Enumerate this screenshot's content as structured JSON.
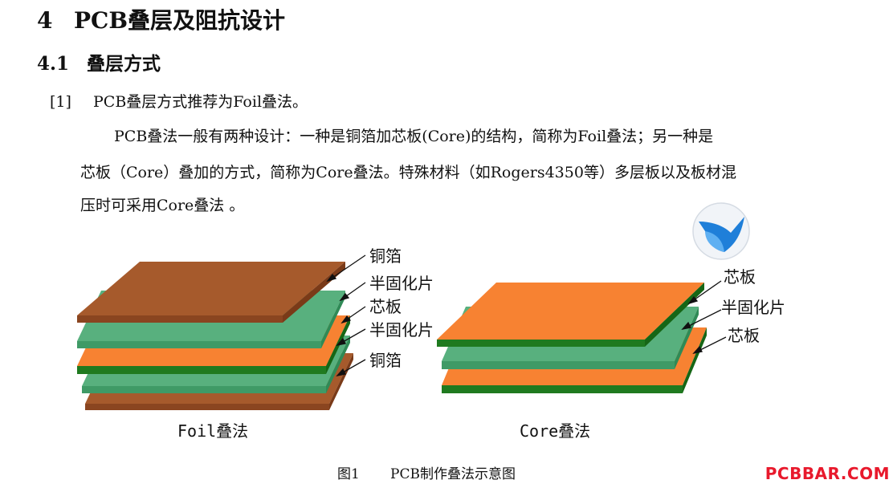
{
  "heading": {
    "number": "4",
    "title": "PCB叠层及阻抗设计"
  },
  "subheading": {
    "number": "4.1",
    "title": "叠层方式"
  },
  "item": {
    "number": "[1]",
    "text": "PCB叠层方式推荐为Foil叠法。"
  },
  "paragraph": {
    "line1": "PCB叠法一般有两种设计：一种是铜箔加芯板(Core)的结构，简称为Foil叠法；另一种是",
    "line2": "芯板（Core）叠加的方式，简称为Core叠法。特殊材料（如Rogers4350等）多层板以及板材混",
    "line3": "压时可采用Core叠法 。"
  },
  "figure": {
    "foil_labels": [
      "铜箔",
      "半固化片",
      "芯板",
      "半固化片",
      "铜箔"
    ],
    "core_labels": [
      "芯板",
      "半固化片",
      "芯板"
    ],
    "foil_caption": "Foil叠法",
    "core_caption": "Core叠法",
    "colors": {
      "copper": "#a65a2c",
      "prepreg": "#58b07e",
      "core": "#f78232",
      "core_edge": "#1f7a1f"
    }
  },
  "caption": {
    "number": "图1",
    "text": "PCB制作叠法示意图"
  },
  "watermark": "PCBBAR.COM"
}
